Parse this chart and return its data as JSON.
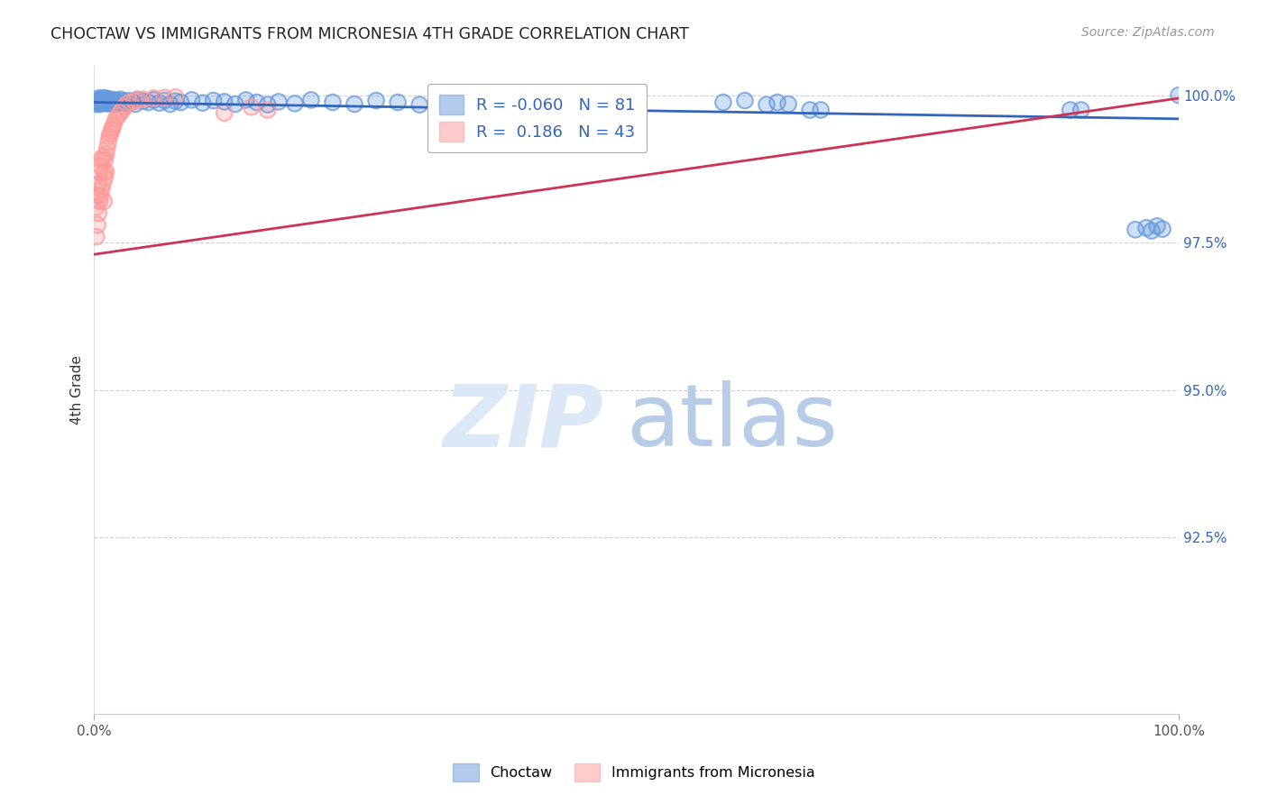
{
  "title": "CHOCTAW VS IMMIGRANTS FROM MICRONESIA 4TH GRADE CORRELATION CHART",
  "source": "Source: ZipAtlas.com",
  "ylabel": "4th Grade",
  "blue_label": "Choctaw",
  "pink_label": "Immigrants from Micronesia",
  "blue_R": -0.06,
  "blue_N": 81,
  "pink_R": 0.186,
  "pink_N": 43,
  "xlim": [
    0.0,
    1.0
  ],
  "ylim": [
    0.895,
    1.005
  ],
  "yticks": [
    0.925,
    0.95,
    0.975,
    1.0
  ],
  "ytick_labels": [
    "92.5%",
    "95.0%",
    "97.5%",
    "100.0%"
  ],
  "xtick_labels": [
    "0.0%",
    "100.0%"
  ],
  "xticks": [
    0.0,
    1.0
  ],
  "title_color": "#222222",
  "title_fontsize": 12.5,
  "source_color": "#999999",
  "source_fontsize": 10,
  "blue_color": "#6699dd",
  "pink_color": "#ff9999",
  "blue_line_color": "#3366bb",
  "pink_line_color": "#cc3355",
  "watermark_zip_color": "#dce8f5",
  "watermark_atlas_color": "#b8cce8",
  "blue_scatter_x": [
    0.002,
    0.003,
    0.004,
    0.004,
    0.005,
    0.005,
    0.006,
    0.006,
    0.007,
    0.007,
    0.008,
    0.008,
    0.009,
    0.009,
    0.01,
    0.01,
    0.011,
    0.011,
    0.012,
    0.012,
    0.013,
    0.013,
    0.014,
    0.014,
    0.015,
    0.016,
    0.017,
    0.018,
    0.019,
    0.02,
    0.022,
    0.024,
    0.026,
    0.028,
    0.03,
    0.032,
    0.035,
    0.038,
    0.04,
    0.045,
    0.05,
    0.055,
    0.06,
    0.065,
    0.07,
    0.075,
    0.08,
    0.09,
    0.1,
    0.11,
    0.12,
    0.13,
    0.14,
    0.15,
    0.16,
    0.17,
    0.185,
    0.2,
    0.22,
    0.24,
    0.26,
    0.28,
    0.3,
    0.32,
    0.34,
    0.36,
    0.58,
    0.6,
    0.62,
    0.63,
    0.64,
    0.66,
    0.67,
    0.9,
    0.91,
    0.96,
    0.97,
    0.975,
    0.98,
    0.985,
    1.0
  ],
  "blue_scatter_y": [
    0.9985,
    0.999,
    0.9995,
    0.9988,
    0.9992,
    0.9985,
    0.9993,
    0.9986,
    0.9994,
    0.9988,
    0.9995,
    0.9989,
    0.9994,
    0.9987,
    0.9995,
    0.9988,
    0.9993,
    0.9986,
    0.9994,
    0.9988,
    0.9993,
    0.9987,
    0.9992,
    0.9986,
    0.9993,
    0.999,
    0.9988,
    0.9985,
    0.9992,
    0.9989,
    0.9987,
    0.9993,
    0.9991,
    0.9988,
    0.9986,
    0.9991,
    0.9989,
    0.9985,
    0.9993,
    0.999,
    0.9988,
    0.9992,
    0.9987,
    0.9991,
    0.9985,
    0.999,
    0.9988,
    0.9992,
    0.9987,
    0.9991,
    0.9989,
    0.9985,
    0.9992,
    0.9988,
    0.9984,
    0.9989,
    0.9986,
    0.9992,
    0.9988,
    0.9985,
    0.9991,
    0.9988,
    0.9984,
    0.998,
    0.9988,
    0.9985,
    0.9988,
    0.9991,
    0.9984,
    0.9988,
    0.9985,
    0.9975,
    0.9975,
    0.9975,
    0.9975,
    0.9772,
    0.9775,
    0.977,
    0.9778,
    0.9773,
    1.0
  ],
  "pink_scatter_x": [
    0.002,
    0.002,
    0.003,
    0.003,
    0.004,
    0.004,
    0.005,
    0.005,
    0.006,
    0.006,
    0.007,
    0.007,
    0.008,
    0.008,
    0.009,
    0.009,
    0.01,
    0.01,
    0.011,
    0.011,
    0.012,
    0.013,
    0.014,
    0.015,
    0.016,
    0.017,
    0.018,
    0.02,
    0.022,
    0.024,
    0.026,
    0.028,
    0.03,
    0.033,
    0.037,
    0.04,
    0.045,
    0.055,
    0.065,
    0.075,
    0.12,
    0.145,
    0.16
  ],
  "pink_scatter_y": [
    0.981,
    0.976,
    0.983,
    0.978,
    0.985,
    0.98,
    0.987,
    0.982,
    0.988,
    0.983,
    0.989,
    0.984,
    0.9895,
    0.985,
    0.987,
    0.982,
    0.989,
    0.986,
    0.99,
    0.987,
    0.991,
    0.992,
    0.993,
    0.9935,
    0.994,
    0.9945,
    0.995,
    0.996,
    0.9965,
    0.997,
    0.9975,
    0.998,
    0.9985,
    0.9988,
    0.999,
    0.9992,
    0.9993,
    0.9995,
    0.9996,
    0.9997,
    0.997,
    0.998,
    0.9975
  ]
}
